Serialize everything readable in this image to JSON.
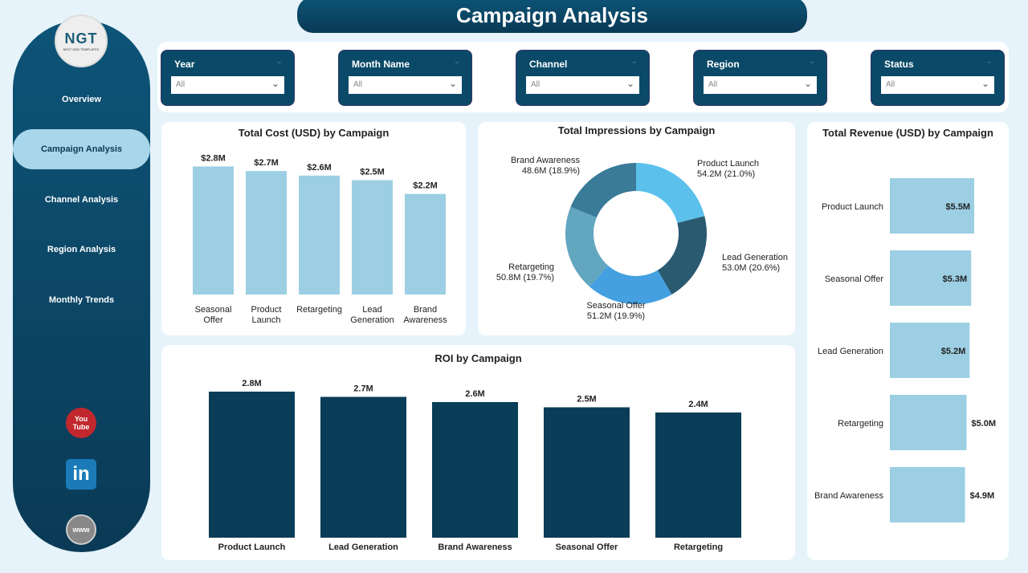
{
  "header": {
    "title": "Campaign  Analysis"
  },
  "logo": {
    "text": "NGT",
    "subtitle": "NEXT GEN TEMPLATES"
  },
  "nav": [
    {
      "label": "Overview"
    },
    {
      "label": "Campaign Analysis",
      "active": true
    },
    {
      "label": "Channel Analysis"
    },
    {
      "label": "Region Analysis"
    },
    {
      "label": "Monthly Trends"
    }
  ],
  "social": [
    {
      "icon": "youtube-icon",
      "label": "You Tube"
    },
    {
      "icon": "linkedin-icon",
      "label": "in"
    },
    {
      "icon": "globe-icon",
      "label": "www"
    }
  ],
  "filters": [
    {
      "label": "Year",
      "value": "All"
    },
    {
      "label": "Month Name",
      "value": "All"
    },
    {
      "label": "Channel",
      "value": "All"
    },
    {
      "label": "Region",
      "value": "All"
    },
    {
      "label": "Status",
      "value": "All"
    }
  ],
  "colors": {
    "primary": "#0a4a68",
    "light_bar": "#9ccfe3",
    "dark_bar": "#0a3d57"
  },
  "chart_data": [
    {
      "type": "bar",
      "title": "Total Cost (USD) by Campaign",
      "categories": [
        "Seasonal Offer",
        "Product Launch",
        "Retargeting",
        "Lead Generation",
        "Brand Awareness"
      ],
      "values": [
        2.8,
        2.7,
        2.6,
        2.5,
        2.2
      ],
      "labels": [
        "$2.8M",
        "$2.7M",
        "$2.6M",
        "$2.5M",
        "$2.2M"
      ],
      "unit": "M USD",
      "color": "#9ccfe3"
    },
    {
      "type": "pie",
      "title": "Total Impressions by Campaign",
      "categories": [
        "Product Launch",
        "Lead Generation",
        "Seasonal Offer",
        "Retargeting",
        "Brand Awareness"
      ],
      "values": [
        54.2,
        53.0,
        51.2,
        50.8,
        48.6
      ],
      "labels": [
        "54.2M (21.0%)",
        "53.0M (20.6%)",
        "51.2M (19.9%)",
        "50.8M (19.7%)",
        "48.6M (18.9%)"
      ],
      "colors": [
        "#5bc0eb",
        "#2a5a70",
        "#44a0e0",
        "#62a6c0",
        "#3a7b98"
      ]
    },
    {
      "type": "bar",
      "orientation": "horizontal",
      "title": "Total Revenue (USD) by Campaign",
      "categories": [
        "Product Launch",
        "Seasonal Offer",
        "Lead Generation",
        "Retargeting",
        "Brand Awareness"
      ],
      "values": [
        5.5,
        5.3,
        5.2,
        5.0,
        4.9
      ],
      "labels": [
        "$5.5M",
        "$5.3M",
        "$5.2M",
        "$5.0M",
        "$4.9M"
      ],
      "color": "#9ccfe3"
    },
    {
      "type": "bar",
      "title": "ROI by Campaign",
      "categories": [
        "Product Launch",
        "Lead Generation",
        "Brand Awareness",
        "Seasonal Offer",
        "Retargeting"
      ],
      "values": [
        2.8,
        2.7,
        2.6,
        2.5,
        2.4
      ],
      "labels": [
        "2.8M",
        "2.7M",
        "2.6M",
        "2.5M",
        "2.4M"
      ],
      "color": "#0a3d57"
    }
  ]
}
